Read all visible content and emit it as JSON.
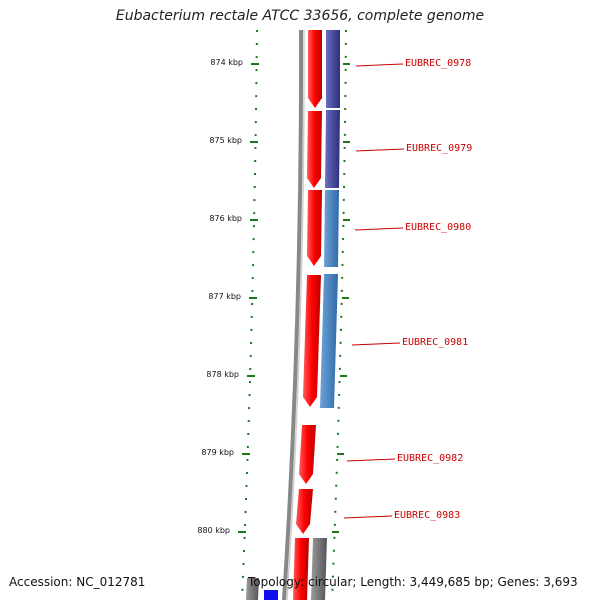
{
  "title": "Eubacterium rectale ATCC 33656, complete genome",
  "footer": {
    "accession": "Accession: NC_012781",
    "summary": "Topology: circular; Length: 3,449,685 bp; Genes: 3,693"
  },
  "ticks": [
    "874 kbp",
    "875 kbp",
    "876 kbp",
    "877 kbp",
    "878 kbp",
    "879 kbp",
    "880 kbp"
  ],
  "genes": [
    "EUBREC_0978",
    "EUBREC_0979",
    "EUBREC_0980",
    "EUBREC_0981",
    "EUBREC_0982",
    "EUBREC_0983"
  ],
  "colors": {
    "forward_cds": "#ff0000",
    "match_dark": "#3b3f9a",
    "match_light": "#3f7fbf",
    "backbone": "#8a8a8a",
    "tick": "#1a7a1a",
    "label": "#cc0000"
  }
}
